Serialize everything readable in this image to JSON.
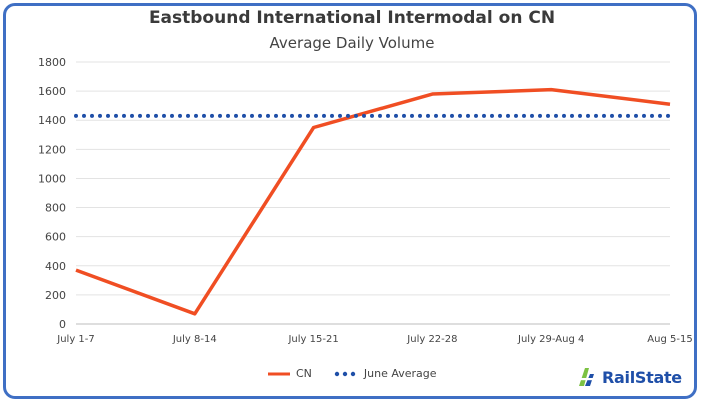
{
  "chart_data": {
    "type": "line",
    "title": "Eastbound International Intermodal on CN",
    "subtitle": "Average Daily Volume",
    "categories": [
      "July 1-7",
      "July 8-14",
      "July 15-21",
      "July 22-28",
      "July 29-Aug 4",
      "Aug 5-15"
    ],
    "series": [
      {
        "name": "CN",
        "values": [
          370,
          70,
          1350,
          1580,
          1610,
          1510
        ],
        "color": "#f04e23",
        "style": "solid"
      },
      {
        "name": "June Average",
        "values": [
          1430,
          1430,
          1430,
          1430,
          1430,
          1430
        ],
        "color": "#1f4fa8",
        "style": "dotted"
      }
    ],
    "ylim": [
      0,
      1800
    ],
    "yticks": [
      0,
      200,
      400,
      600,
      800,
      1000,
      1200,
      1400,
      1600,
      1800
    ],
    "grid": true,
    "legend_position": "bottom"
  },
  "branding": {
    "logo_text": "RailState",
    "logo_icon": "railstate-logo-icon",
    "brand_color": "#1f4fa8",
    "accent_color": "#7cc242"
  }
}
